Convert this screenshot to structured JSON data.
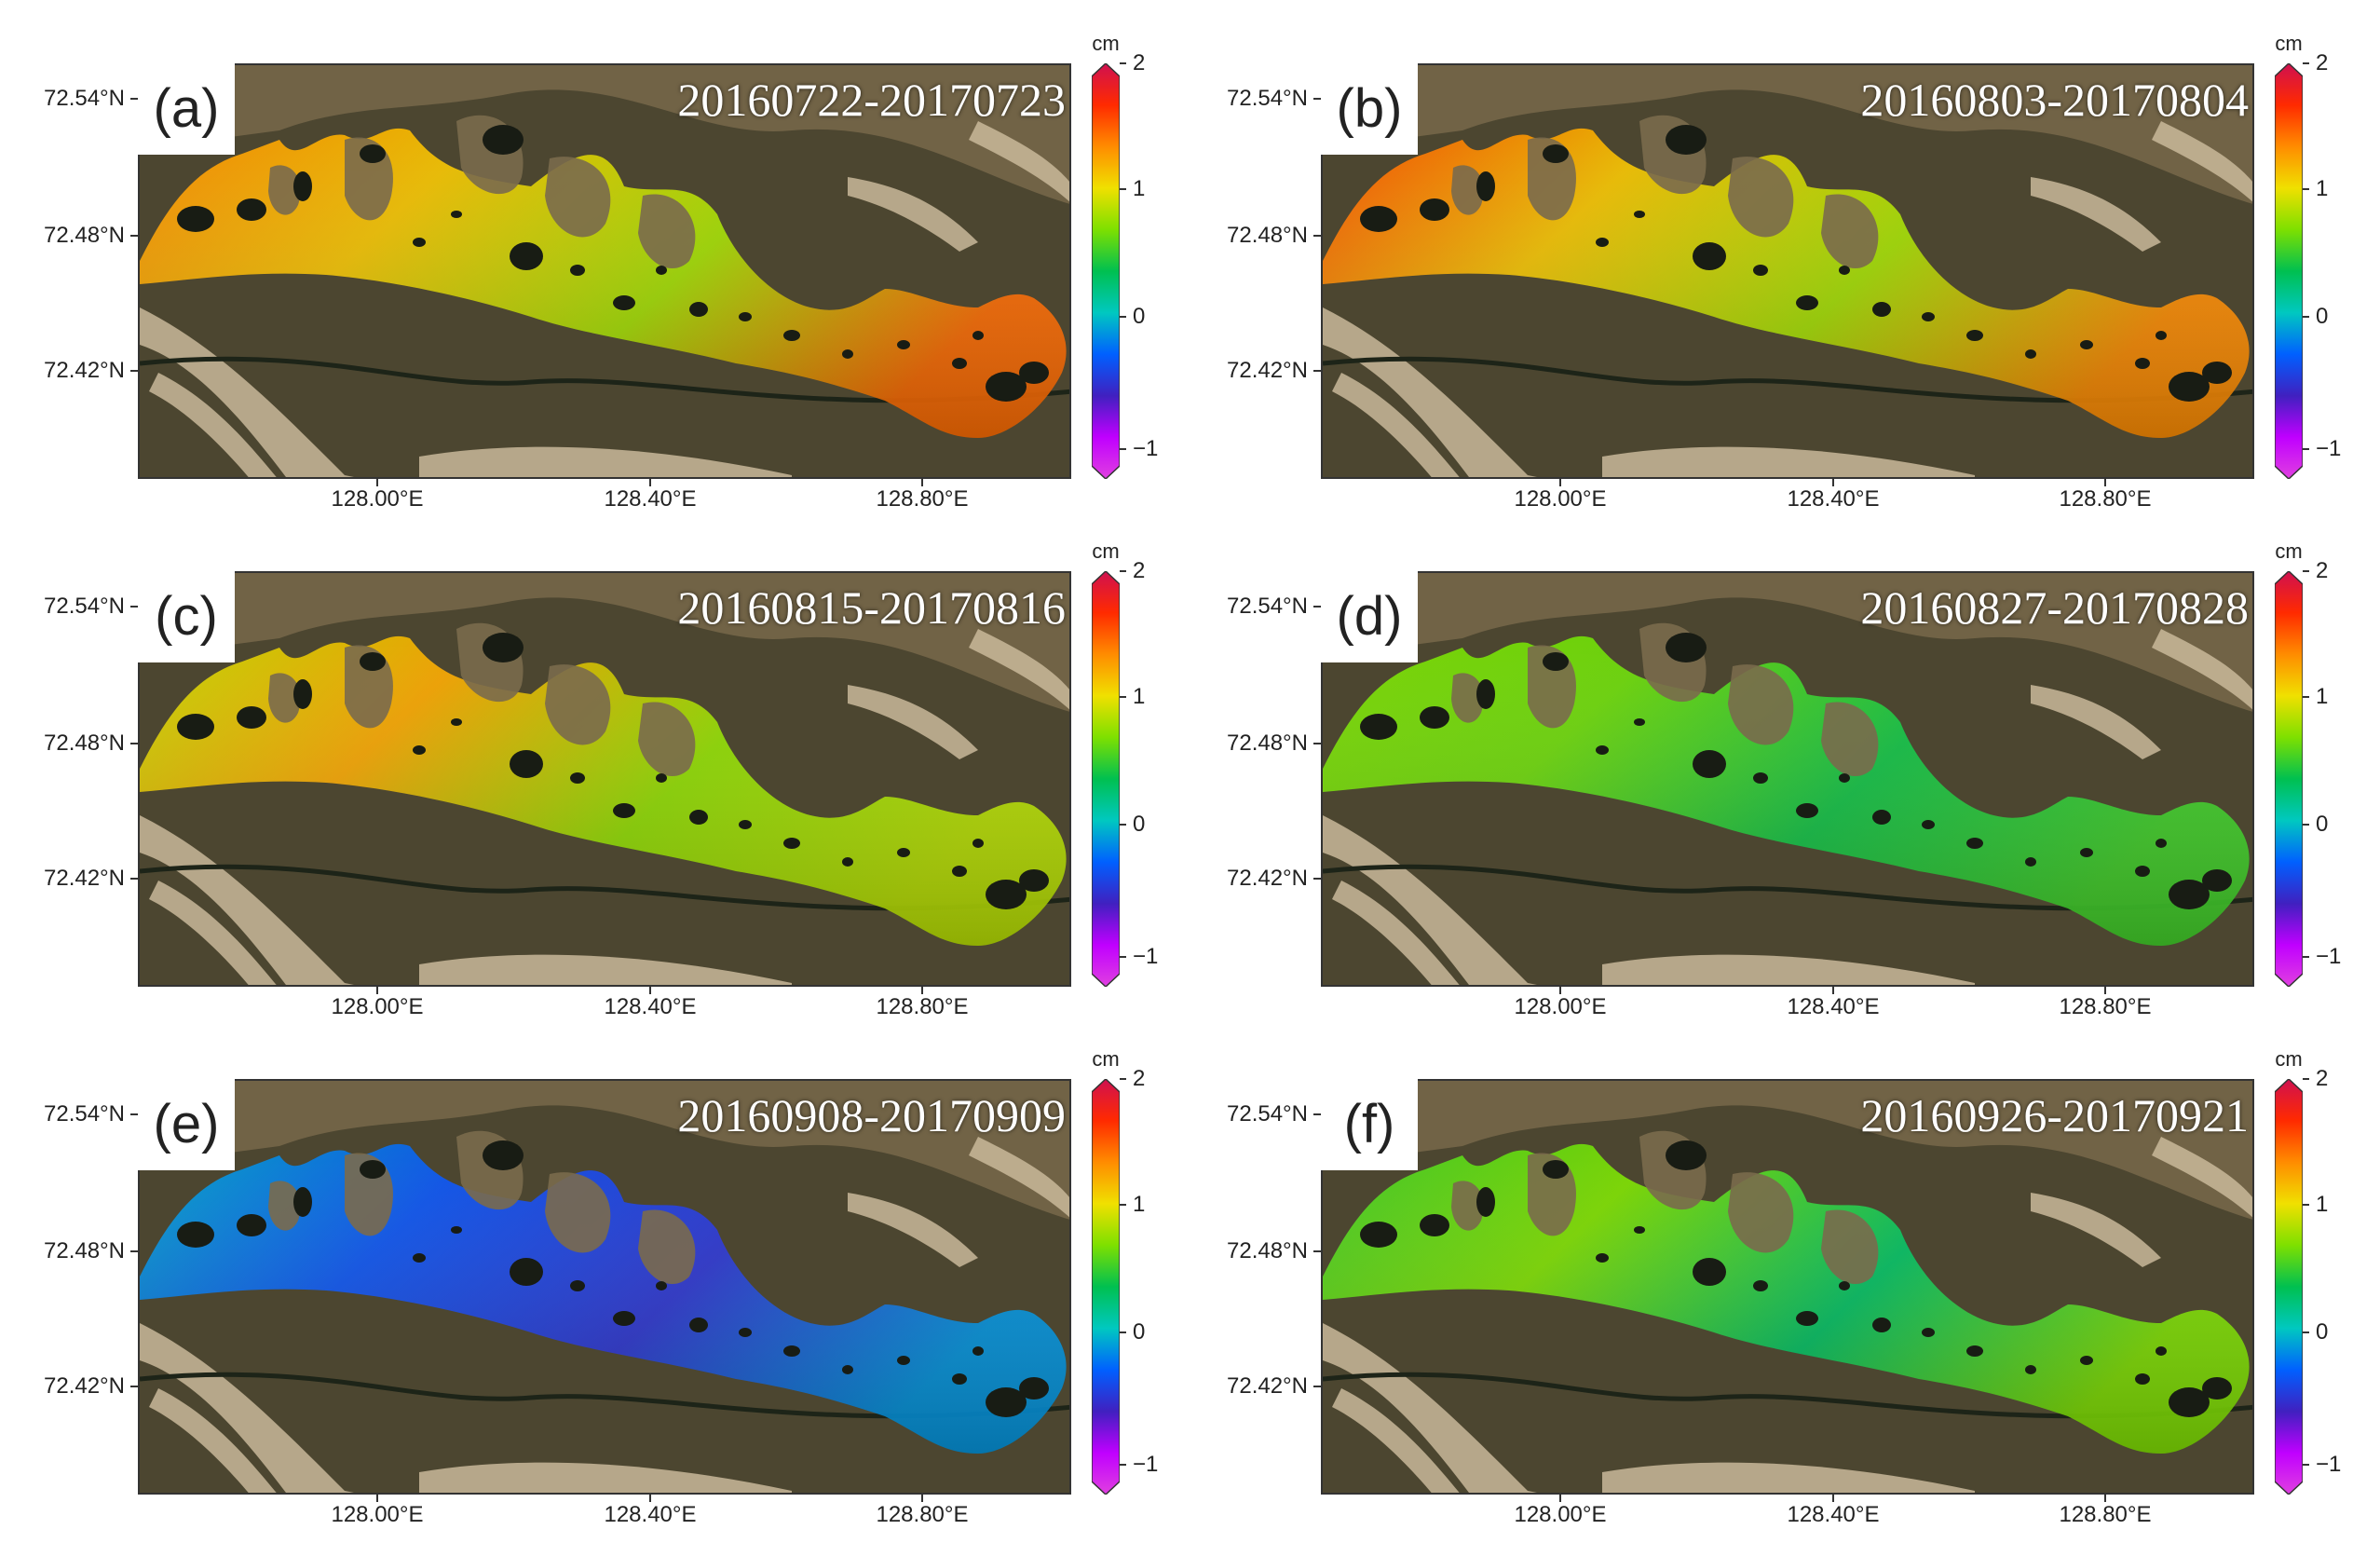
{
  "panels": [
    {
      "letter": "(a)",
      "dates": "20160722-20170723",
      "lv": [
        1.5,
        1.3,
        1.0,
        1.6
      ]
    },
    {
      "letter": "(b)",
      "dates": "20160803-20170804",
      "lv": [
        1.7,
        1.3,
        1.0,
        1.5
      ]
    },
    {
      "letter": "(c)",
      "dates": "20160815-20170816",
      "lv": [
        1.1,
        1.4,
        0.95,
        1.05
      ]
    },
    {
      "letter": "(d)",
      "dates": "20160827-20170828",
      "lv": [
        0.9,
        0.85,
        0.55,
        0.7
      ]
    },
    {
      "letter": "(e)",
      "dates": "20160908-20170909",
      "lv": [
        0.15,
        -0.05,
        -0.2,
        0.1
      ]
    },
    {
      "letter": "(f)",
      "dates": "20160926-20170921",
      "lv": [
        0.7,
        0.9,
        0.45,
        0.9
      ]
    }
  ],
  "axes": {
    "lat_labels": [
      "72.54°N",
      "72.48°N",
      "72.42°N"
    ],
    "lon_labels": [
      "128.00°E",
      "128.40°E",
      "128.80°E"
    ]
  },
  "colorbar": {
    "unit": "cm",
    "tick_labels": [
      "2",
      "1",
      "0",
      "−1"
    ],
    "range": [
      -1,
      2
    ]
  },
  "colors": {
    "colorbar_stops": [
      "#d01050",
      "#ff2a00",
      "#ff8c00",
      "#f0e000",
      "#7ee000",
      "#00c050",
      "#00c8c0",
      "#0060ff",
      "#4020c0",
      "#c000ff",
      "#e040e0"
    ],
    "land": "#4c4630",
    "upland": "#7a6a4c",
    "lake": "#181c14",
    "sand": "#c9b99a"
  }
}
